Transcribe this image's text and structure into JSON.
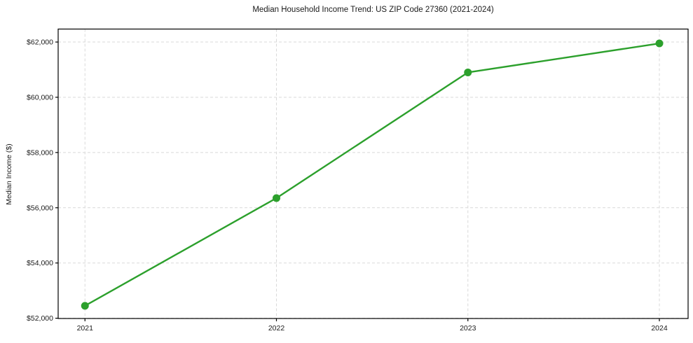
{
  "chart_data": {
    "type": "line",
    "title": "Median Household Income Trend: US ZIP Code 27360 (2021-2024)",
    "xlabel": "",
    "ylabel": "Median Income ($)",
    "categories": [
      2021,
      2022,
      2023,
      2024
    ],
    "xtick_labels": [
      "2021",
      "2022",
      "2023",
      "2024"
    ],
    "ytick_values": [
      52000,
      54000,
      56000,
      58000,
      60000,
      62000
    ],
    "ytick_labels": [
      "$52,000",
      "$54,000",
      "$56,000",
      "$58,000",
      "$60,000",
      "$62,000"
    ],
    "series": [
      {
        "name": "Median Household Income",
        "values": [
          52450,
          56350,
          60900,
          61950
        ],
        "color": "#2ca02c",
        "marker": "circle"
      }
    ],
    "xlim": [
      2020.86,
      2024.15
    ],
    "ylim": [
      51990,
      62470
    ],
    "grid": true,
    "grid_color": "#d9d9d9",
    "grid_dash": "4 3",
    "axis_color": "#000000",
    "text_color": "#1a1a1a",
    "legend": "none"
  }
}
